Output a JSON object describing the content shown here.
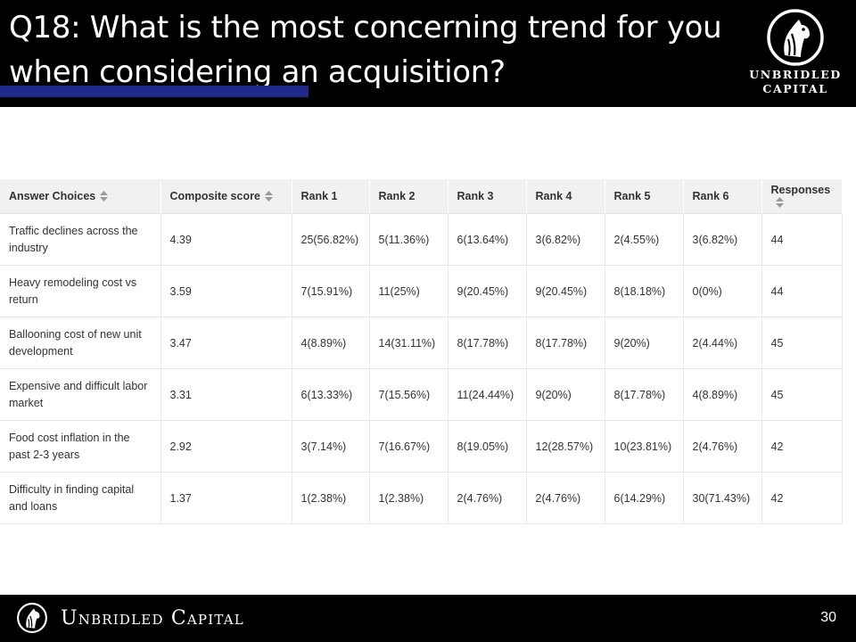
{
  "slide": {
    "title": "Q18: What is the most concerning trend for you when considering an acquisition?",
    "logo_text_line1": "UNBRIDLED",
    "logo_text_line2": "CAPITAL",
    "footer_brand": "Unbridled Capital",
    "page_number": "30",
    "accent_color": "#1f2a8c",
    "logo_icon": "horse-head-icon"
  },
  "table": {
    "headers": [
      "Answer Choices",
      "Composite score",
      "Rank 1",
      "Rank 2",
      "Rank 3",
      "Rank 4",
      "Rank 5",
      "Rank 6",
      "Responses"
    ],
    "rows": [
      [
        "Traffic declines across the industry",
        "4.39",
        "25(56.82%)",
        "5(11.36%)",
        "6(13.64%)",
        "3(6.82%)",
        "2(4.55%)",
        "3(6.82%)",
        "44"
      ],
      [
        "Heavy remodeling cost vs return",
        "3.59",
        "7(15.91%)",
        "11(25%)",
        "9(20.45%)",
        "9(20.45%)",
        "8(18.18%)",
        "0(0%)",
        "44"
      ],
      [
        "Ballooning cost of new unit development",
        "3.47",
        "4(8.89%)",
        "14(31.11%)",
        "8(17.78%)",
        "8(17.78%)",
        "9(20%)",
        "2(4.44%)",
        "45"
      ],
      [
        "Expensive and difficult labor market",
        "3.31",
        "6(13.33%)",
        "7(15.56%)",
        "11(24.44%)",
        "9(20%)",
        "8(17.78%)",
        "4(8.89%)",
        "45"
      ],
      [
        "Food cost inflation in the past 2-3 years",
        "2.92",
        "3(7.14%)",
        "7(16.67%)",
        "8(19.05%)",
        "12(28.57%)",
        "10(23.81%)",
        "2(4.76%)",
        "42"
      ],
      [
        "Difficulty in finding capital and loans",
        "1.37",
        "1(2.38%)",
        "1(2.38%)",
        "2(4.76%)",
        "2(4.76%)",
        "6(14.29%)",
        "30(71.43%)",
        "42"
      ]
    ]
  }
}
